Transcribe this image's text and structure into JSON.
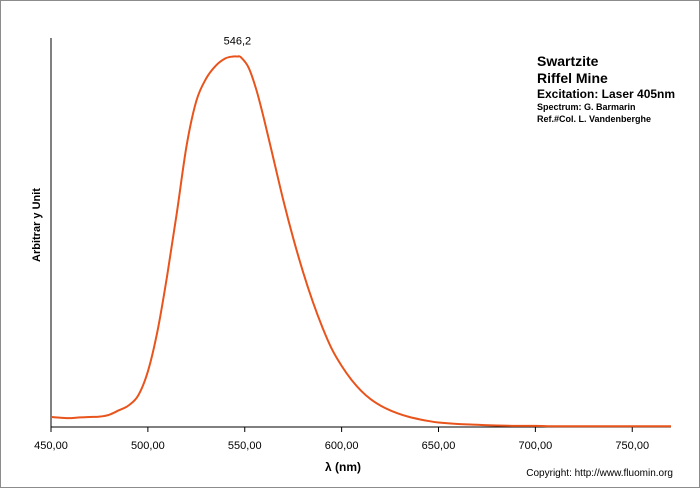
{
  "chart_data": {
    "type": "line",
    "title": "",
    "xlabel": "λ (nm)",
    "ylabel": "Arbitrar y Unit",
    "xlim": [
      450,
      770
    ],
    "ylim": [
      0,
      1.05
    ],
    "grid": false,
    "x_tick_labels": [
      "450,00",
      "500,00",
      "550,00",
      "600,00",
      "650,00",
      "700,00",
      "750,00"
    ],
    "x_ticks": [
      450,
      500,
      550,
      600,
      650,
      700,
      750
    ],
    "annotations": [
      {
        "text": "546,2",
        "x": 546.2
      }
    ],
    "series": [
      {
        "color": "#e8541c",
        "x": [
          450,
          455,
          460,
          465,
          470,
          475,
          480,
          485,
          490,
          495,
          500,
          505,
          510,
          515,
          520,
          525,
          530,
          535,
          540,
          544,
          546.2,
          548,
          552,
          556,
          560,
          565,
          570,
          575,
          580,
          585,
          590,
          595,
          600,
          605,
          610,
          615,
          620,
          625,
          630,
          635,
          640,
          645,
          650,
          660,
          670,
          680,
          690,
          700,
          710,
          720,
          730,
          740,
          750,
          760,
          770
        ],
        "y": [
          0.027,
          0.025,
          0.024,
          0.026,
          0.027,
          0.028,
          0.033,
          0.045,
          0.058,
          0.085,
          0.15,
          0.26,
          0.41,
          0.58,
          0.76,
          0.88,
          0.94,
          0.975,
          0.995,
          1.0,
          1.0,
          0.998,
          0.97,
          0.91,
          0.83,
          0.72,
          0.61,
          0.51,
          0.42,
          0.34,
          0.27,
          0.21,
          0.165,
          0.128,
          0.098,
          0.075,
          0.058,
          0.045,
          0.035,
          0.027,
          0.021,
          0.016,
          0.012,
          0.008,
          0.006,
          0.004,
          0.003,
          0.003,
          0.002,
          0.002,
          0.002,
          0.002,
          0.002,
          0.002,
          0.002
        ]
      }
    ]
  },
  "info": {
    "line1": "Swartzite",
    "line2": "Riffel Mine",
    "line3": "Excitation:  Laser 405nm",
    "line4": "Spectrum: G. Barmarin",
    "line5": "Ref.#Col. L. Vandenberghe"
  },
  "copyright": "Copyright: http://www.fluomin.org"
}
